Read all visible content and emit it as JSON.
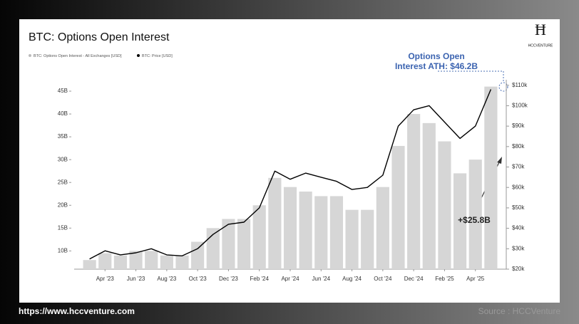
{
  "chart_data": {
    "type": "bar",
    "title": "BTC: Options Open Interest",
    "logo": "HCCVENTURE",
    "x": [
      "2023-03",
      "2023-04",
      "2023-05",
      "2023-06",
      "2023-07",
      "2023-08",
      "2023-09",
      "2023-10",
      "2023-11",
      "2023-12",
      "2024-01",
      "2024-02",
      "2024-03",
      "2024-04",
      "2024-05",
      "2024-06",
      "2024-07",
      "2024-08",
      "2024-09",
      "2024-10",
      "2024-11",
      "2024-12",
      "2025-01",
      "2025-02",
      "2025-03",
      "2025-04",
      "2025-05"
    ],
    "series": [
      {
        "name": "BTC: Options Open Interest - All Exchanges [USD]",
        "type": "bar",
        "color": "#d6d6d6",
        "values": [
          8,
          9.5,
          9,
          10,
          10,
          9,
          9,
          12,
          15,
          17,
          17,
          20,
          26,
          24,
          23,
          22,
          22,
          19,
          19,
          24,
          33,
          40,
          38,
          34,
          27,
          30,
          46
        ]
      },
      {
        "name": "BTC: Price [USD]",
        "type": "line",
        "axis": "y2",
        "color": "#000000",
        "values": [
          25,
          29,
          27,
          28,
          30,
          27,
          26.5,
          30,
          37,
          42,
          43,
          50,
          68,
          64,
          67,
          65,
          63,
          59,
          60,
          66,
          90,
          98,
          100,
          92,
          84,
          90,
          108
        ]
      }
    ],
    "xlim": [
      "2023-02",
      "2025-06"
    ],
    "xticks": [
      {
        "value": "2023-04",
        "label": "Apr '23"
      },
      {
        "value": "2023-06",
        "label": "Jun '23"
      },
      {
        "value": "2023-08",
        "label": "Aug '23"
      },
      {
        "value": "2023-10",
        "label": "Oct '23"
      },
      {
        "value": "2023-12",
        "label": "Dec '23"
      },
      {
        "value": "2024-02",
        "label": "Feb '24"
      },
      {
        "value": "2024-04",
        "label": "Apr '24"
      },
      {
        "value": "2024-06",
        "label": "Jun '24"
      },
      {
        "value": "2024-08",
        "label": "Aug '24"
      },
      {
        "value": "2024-10",
        "label": "Oct '24"
      },
      {
        "value": "2024-12",
        "label": "Dec '24"
      },
      {
        "value": "2025-02",
        "label": "Feb '25"
      },
      {
        "value": "2025-04",
        "label": "Apr '25"
      }
    ],
    "ylim": [
      6,
      47.5
    ],
    "yticks": [
      {
        "value": 10,
        "label": "10B"
      },
      {
        "value": 15,
        "label": "15B"
      },
      {
        "value": 20,
        "label": "20B"
      },
      {
        "value": 25,
        "label": "25B"
      },
      {
        "value": 30,
        "label": "30B"
      },
      {
        "value": 35,
        "label": "35B"
      },
      {
        "value": 40,
        "label": "40B"
      },
      {
        "value": 45,
        "label": "45B"
      }
    ],
    "y2lim": [
      20,
      112.7
    ],
    "y2ticks": [
      {
        "value": 20,
        "label": "$20k"
      },
      {
        "value": 30,
        "label": "$30k"
      },
      {
        "value": 40,
        "label": "$40k"
      },
      {
        "value": 50,
        "label": "$50k"
      },
      {
        "value": 60,
        "label": "$60k"
      },
      {
        "value": 70,
        "label": "$70k"
      },
      {
        "value": 80,
        "label": "$80k"
      },
      {
        "value": 90,
        "label": "$90k"
      },
      {
        "value": 100,
        "label": "$100k"
      },
      {
        "value": 110,
        "label": "$110k"
      }
    ],
    "annotations": [
      {
        "text": "Options Open Interest ATH: $46.2B"
      },
      {
        "text": "+$25.8B"
      }
    ],
    "footer": {
      "url": "https://www.hccventure.com",
      "source": "Source : HCCVenture"
    }
  }
}
